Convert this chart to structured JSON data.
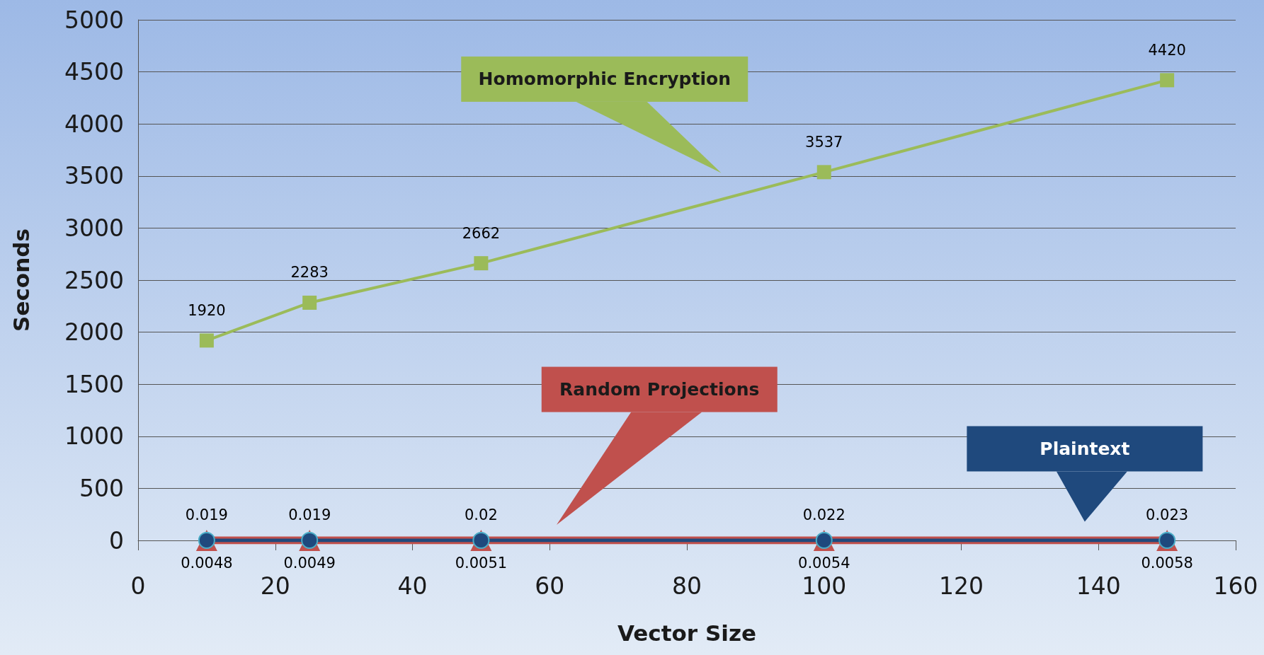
{
  "chart_data": {
    "type": "line",
    "xlabel": "Vector Size",
    "ylabel": "Seconds",
    "x": [
      10,
      25,
      50,
      100,
      150
    ],
    "xlim": [
      0,
      160
    ],
    "xticks": [
      0,
      20,
      40,
      60,
      80,
      100,
      120,
      140,
      160
    ],
    "ylim": [
      0,
      5000
    ],
    "yticks": [
      0,
      500,
      1000,
      1500,
      2000,
      2500,
      3000,
      3500,
      4000,
      4500,
      5000
    ],
    "grid": "y",
    "legend": false,
    "series": [
      {
        "name": "Homomorphic Encryption",
        "color": "#9bbb59",
        "marker": "square",
        "values": [
          1920,
          2283,
          2662,
          3537,
          4420
        ],
        "value_labels": [
          "1920",
          "2283",
          "2662",
          "3537",
          "4420"
        ]
      },
      {
        "name": "Random Projections",
        "color": "#c0504d",
        "marker": "triangle",
        "values": [
          0.019,
          0.019,
          0.02,
          0.022,
          0.023
        ],
        "value_labels": [
          "0.019",
          "0.019",
          "0.02",
          "0.022",
          "0.023"
        ]
      },
      {
        "name": "Plaintext",
        "color": "#1f497d",
        "marker": "circle",
        "values": [
          0.0048,
          0.0049,
          0.0051,
          0.0054,
          0.0058
        ],
        "value_labels": [
          "0.0048",
          "0.0049",
          "0.0051",
          "0.0054",
          "0.0058"
        ]
      }
    ]
  }
}
